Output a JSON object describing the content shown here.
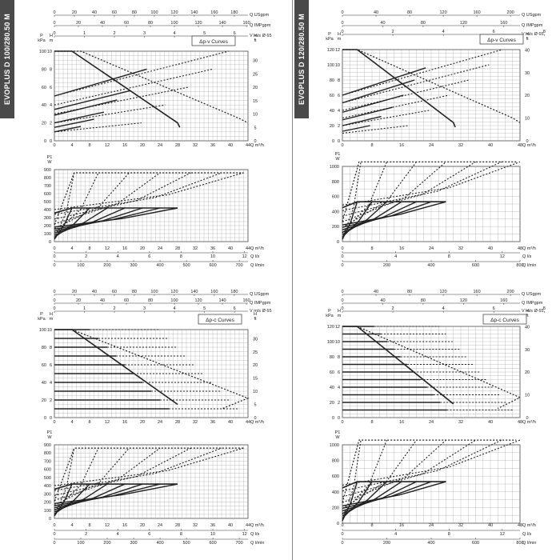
{
  "sidebar_left": "EVOPLUS D 100/280.50 M",
  "sidebar_right": "EVOPLUS D 120/280.50 M",
  "chart_data": [
    {
      "type": "line",
      "panel": "left-top",
      "title": "Δp-v Curves",
      "curve_style": "pv",
      "y1_label": [
        "P",
        "kPa"
      ],
      "y2_label": [
        "H",
        "m"
      ],
      "y3_label": [
        "H",
        "ft"
      ],
      "p_label": [
        "P1",
        "W"
      ],
      "xlim": [
        0,
        44
      ],
      "ylim": [
        0,
        100
      ],
      "xticks": [
        0,
        4,
        8,
        12,
        16,
        20,
        24,
        28,
        32,
        36,
        40,
        44
      ],
      "xunit": "Q m³/h",
      "yticks": [
        0,
        20,
        40,
        60,
        80,
        100
      ],
      "mticks": [
        0,
        2,
        4,
        6,
        8,
        10
      ],
      "ftticks": [
        0,
        5,
        10,
        15,
        20,
        25,
        30
      ],
      "top_axes": [
        {
          "label": "Q USgpm",
          "ticks": [
            0,
            20,
            40,
            60,
            80,
            100,
            120,
            140,
            160,
            180
          ],
          "max": 193.7
        },
        {
          "label": "Q IMPgpm",
          "ticks": [
            0,
            20,
            40,
            60,
            80,
            100,
            120,
            140,
            160
          ],
          "max": 161.3
        },
        {
          "label": "V m/s Ø 65",
          "ticks": [
            0,
            1,
            2,
            3,
            4,
            5,
            6
          ],
          "max": 6.45
        }
      ],
      "plim": [
        0,
        900
      ],
      "pticks": [
        0,
        100,
        200,
        300,
        400,
        500,
        600,
        700,
        800,
        900
      ],
      "bottom_axes": [
        {
          "label": "Q m³/h",
          "ticks": [
            0,
            4,
            8,
            12,
            16,
            20,
            24,
            28,
            32,
            36,
            40,
            44
          ],
          "max": 44
        },
        {
          "label": "Q l/s",
          "ticks": [
            0,
            2,
            4,
            6,
            8,
            10,
            12
          ],
          "max": 12.22
        },
        {
          "label": "Q l/min",
          "ticks": [
            0,
            100,
            200,
            300,
            400,
            500,
            600,
            700
          ],
          "max": 733
        }
      ],
      "h_max": [
        100,
        70,
        57,
        40,
        30,
        20
      ],
      "q_max": [
        28,
        23,
        19,
        15,
        12,
        8
      ],
      "dotted_H": [
        100,
        80,
        60,
        40,
        20
      ],
      "dotted_Q": [
        44,
        40,
        34,
        28,
        22
      ],
      "p_max": [
        860,
        420
      ],
      "p_dotted_q": [
        4.5,
        10,
        17,
        24,
        31,
        38,
        43
      ],
      "p_solid_q": [
        4,
        8,
        12,
        16,
        20,
        24,
        28
      ]
    },
    {
      "type": "line",
      "panel": "right-top",
      "title": "Δp-v Curves",
      "curve_style": "pv",
      "y1_label": [
        "P",
        "kPa"
      ],
      "y2_label": [
        "H",
        "m"
      ],
      "y3_label": [
        "H",
        "ft"
      ],
      "p_label": [
        "P1",
        "W"
      ],
      "xlim": [
        0,
        48
      ],
      "ylim": [
        0,
        120
      ],
      "xticks": [
        0,
        8,
        16,
        24,
        32,
        40,
        48
      ],
      "xunit": "Q m³/h",
      "yticks": [
        0,
        20,
        40,
        60,
        80,
        100,
        120
      ],
      "mticks": [
        0,
        2,
        4,
        6,
        8,
        10,
        12
      ],
      "ftticks": [
        0,
        10,
        20,
        30,
        40
      ],
      "top_axes": [
        {
          "label": "Q USgpm",
          "ticks": [
            0,
            40,
            80,
            120,
            160,
            200
          ],
          "max": 211.3
        },
        {
          "label": "Q IMPgpm",
          "ticks": [
            0,
            40,
            80,
            120,
            160
          ],
          "max": 176
        },
        {
          "label": "V m/s Ø 65",
          "ticks": [
            0,
            2,
            4,
            6,
            8
          ],
          "max": 7.04
        }
      ],
      "plim": [
        0,
        1000
      ],
      "pticks": [
        0,
        200,
        400,
        600,
        800,
        1000
      ],
      "bottom_axes": [
        {
          "label": "Q m³/h",
          "ticks": [
            0,
            8,
            16,
            24,
            32,
            40,
            48
          ],
          "max": 48
        },
        {
          "label": "Q l/s",
          "ticks": [
            0,
            4,
            8,
            12
          ],
          "max": 13.33
        },
        {
          "label": "Q l/min",
          "ticks": [
            0,
            200,
            400,
            600,
            800
          ],
          "max": 800
        }
      ],
      "h_max": [
        120,
        100,
        75,
        55,
        40,
        25
      ],
      "q_max": [
        30,
        26,
        22,
        18,
        14,
        10
      ],
      "dotted_H": [
        120,
        100,
        80,
        60,
        40,
        20
      ],
      "dotted_Q": [
        48,
        44,
        38,
        32,
        26,
        20
      ],
      "p_max": [
        1060,
        530
      ],
      "p_dotted_q": [
        5,
        12,
        20,
        28,
        36,
        43,
        48
      ],
      "p_solid_q": [
        4,
        8,
        12,
        16,
        20,
        24,
        28
      ]
    },
    {
      "type": "line",
      "panel": "left-bottom",
      "title": "Δp-c Curves",
      "curve_style": "pc",
      "y1_label": [
        "P",
        "kPa"
      ],
      "y2_label": [
        "H",
        "m"
      ],
      "y3_label": [
        "H",
        "ft"
      ],
      "p_label": [
        "P1",
        "W"
      ],
      "xlim": [
        0,
        44
      ],
      "ylim": [
        0,
        100
      ],
      "xticks": [
        0,
        4,
        8,
        12,
        16,
        20,
        24,
        28,
        32,
        36,
        40,
        44
      ],
      "xunit": "Q m³/h",
      "yticks": [
        0,
        20,
        40,
        60,
        80,
        100
      ],
      "mticks": [
        0,
        2,
        4,
        6,
        8,
        10
      ],
      "ftticks": [
        0,
        5,
        10,
        15,
        20,
        25,
        30
      ],
      "top_axes": [
        {
          "label": "Q USgpm",
          "ticks": [
            0,
            20,
            40,
            60,
            80,
            100,
            120,
            140,
            160,
            180
          ],
          "max": 193.7
        },
        {
          "label": "Q IMPgpm",
          "ticks": [
            0,
            20,
            40,
            60,
            80,
            100,
            120,
            140,
            160
          ],
          "max": 161.3
        },
        {
          "label": "V m/s Ø 65",
          "ticks": [
            0,
            1,
            2,
            3,
            4,
            5,
            6
          ],
          "max": 6.45
        }
      ],
      "plim": [
        0,
        900
      ],
      "pticks": [
        0,
        100,
        200,
        300,
        400,
        500,
        600,
        700,
        800,
        900
      ],
      "bottom_axes": [
        {
          "label": "Q m³/h",
          "ticks": [
            0,
            4,
            8,
            12,
            16,
            20,
            24,
            28,
            32,
            36,
            40,
            44
          ],
          "max": 44
        },
        {
          "label": "Q l/s",
          "ticks": [
            0,
            2,
            4,
            6,
            8,
            10,
            12
          ],
          "max": 12.22
        },
        {
          "label": "Q l/min",
          "ticks": [
            0,
            100,
            200,
            300,
            400,
            500,
            600,
            700
          ],
          "max": 733
        }
      ],
      "h_levels": [
        100,
        90,
        80,
        70,
        60,
        50,
        40,
        30,
        20,
        10
      ],
      "solid_end": [
        28,
        28,
        28,
        28,
        28,
        28,
        28,
        28,
        28,
        28
      ],
      "dotted_end": [
        44,
        44,
        44,
        44,
        44,
        44,
        44,
        44,
        44,
        44
      ],
      "p_max": [
        860,
        420
      ],
      "p_dotted_q": [
        4.5,
        10,
        17,
        24,
        31,
        38,
        43
      ],
      "p_solid_q": [
        4,
        8,
        12,
        16,
        20,
        24,
        28
      ]
    },
    {
      "type": "line",
      "panel": "right-bottom",
      "title": "Δp-c Curves",
      "curve_style": "pc",
      "y1_label": [
        "P",
        "kPa"
      ],
      "y2_label": [
        "H",
        "m"
      ],
      "y3_label": [
        "H",
        "ft"
      ],
      "p_label": [
        "P1",
        "W"
      ],
      "xlim": [
        0,
        48
      ],
      "ylim": [
        0,
        120
      ],
      "xticks": [
        0,
        8,
        16,
        24,
        32,
        40,
        48
      ],
      "xunit": "Q m³/h",
      "yticks": [
        0,
        20,
        40,
        60,
        80,
        100,
        120
      ],
      "mticks": [
        0,
        2,
        4,
        6,
        8,
        10,
        12
      ],
      "ftticks": [
        0,
        10,
        20,
        30,
        40
      ],
      "top_axes": [
        {
          "label": "Q USgpm",
          "ticks": [
            0,
            40,
            80,
            120,
            160,
            200
          ],
          "max": 211.3
        },
        {
          "label": "Q IMPgpm",
          "ticks": [
            0,
            40,
            80,
            120,
            160
          ],
          "max": 176
        },
        {
          "label": "V m/s Ø 65",
          "ticks": [
            0,
            2,
            4,
            6,
            8
          ],
          "max": 7.04
        }
      ],
      "plim": [
        0,
        1000
      ],
      "pticks": [
        0,
        200,
        400,
        600,
        800,
        1000
      ],
      "bottom_axes": [
        {
          "label": "Q m³/h",
          "ticks": [
            0,
            8,
            16,
            24,
            32,
            40,
            48
          ],
          "max": 48
        },
        {
          "label": "Q l/s",
          "ticks": [
            0,
            4,
            8,
            12
          ],
          "max": 13.33
        },
        {
          "label": "Q l/min",
          "ticks": [
            0,
            200,
            400,
            600,
            800
          ],
          "max": 800
        }
      ],
      "h_levels": [
        120,
        110,
        100,
        90,
        80,
        70,
        60,
        50,
        40,
        30,
        20,
        10
      ],
      "solid_end": [
        30,
        30,
        30,
        30,
        30,
        30,
        30,
        30,
        30,
        30,
        30,
        30
      ],
      "dotted_end": [
        48,
        48,
        48,
        48,
        48,
        48,
        48,
        48,
        48,
        48,
        48,
        48
      ],
      "p_max": [
        1060,
        530
      ],
      "p_dotted_q": [
        5,
        12,
        20,
        28,
        36,
        43,
        48
      ],
      "p_solid_q": [
        4,
        8,
        12,
        16,
        20,
        24,
        28
      ]
    }
  ]
}
